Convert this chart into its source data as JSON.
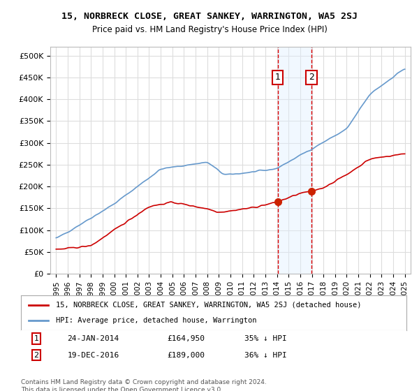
{
  "title": "15, NORBRECK CLOSE, GREAT SANKEY, WARRINGTON, WA5 2SJ",
  "subtitle": "Price paid vs. HM Land Registry's House Price Index (HPI)",
  "hpi_color": "#6699cc",
  "price_color": "#cc0000",
  "annotation_color": "#dd0000",
  "background_color": "#ffffff",
  "grid_color": "#dddddd",
  "highlight_fill": "#ddeeff",
  "highlight_alpha": 0.4,
  "ylim": [
    0,
    520000
  ],
  "yticks": [
    0,
    50000,
    100000,
    150000,
    200000,
    250000,
    300000,
    350000,
    400000,
    450000,
    500000
  ],
  "ytick_labels": [
    "£0",
    "£50K",
    "£100K",
    "£150K",
    "£200K",
    "£250K",
    "£300K",
    "£350K",
    "£400K",
    "£450K",
    "£500K"
  ],
  "xtick_labels": [
    "1995",
    "1996",
    "1997",
    "1998",
    "1999",
    "2000",
    "2001",
    "2002",
    "2003",
    "2004",
    "2005",
    "2006",
    "2007",
    "2008",
    "2009",
    "2010",
    "2011",
    "2012",
    "2013",
    "2014",
    "2015",
    "2016",
    "2017",
    "2018",
    "2019",
    "2020",
    "2021",
    "2022",
    "2023",
    "2024",
    "2025"
  ],
  "sale1_date": "24-JAN-2014",
  "sale1_price": 164950,
  "sale1_label": "1",
  "sale1_x": 2014.07,
  "sale2_date": "19-DEC-2016",
  "sale2_price": 189000,
  "sale2_label": "2",
  "sale2_x": 2016.97,
  "legend_label_price": "15, NORBRECK CLOSE, GREAT SANKEY, WARRINGTON, WA5 2SJ (detached house)",
  "legend_label_hpi": "HPI: Average price, detached house, Warrington",
  "footnote": "Contains HM Land Registry data © Crown copyright and database right 2024.\nThis data is licensed under the Open Government Licence v3.0.",
  "annotation1_text": "24-JAN-2014     £164,950     35% ↓ HPI",
  "annotation2_text": "19-DEC-2016     £189,000     36% ↓ HPI"
}
